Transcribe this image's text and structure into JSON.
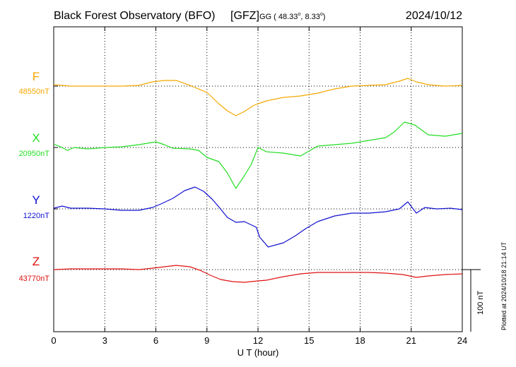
{
  "header": {
    "title": "Black Forest Observatory (BFO)",
    "agency": "[GFZ]",
    "coords_prefix": "GG ( 48.33",
    "coords_mid": ",   8.33",
    "coords_suffix": ")",
    "date": "2024/10/12"
  },
  "footer": {
    "plotted_note": "Plotted at 2024/10/18 21:14 UT"
  },
  "chart_data": {
    "type": "line",
    "xlabel": "U T (hour)",
    "xlim": [
      0,
      24
    ],
    "xticks": [
      0,
      3,
      6,
      9,
      12,
      15,
      18,
      21,
      24
    ],
    "xtick_labels": [
      "0",
      "3",
      "6",
      "9",
      "12",
      "15",
      "18",
      "21",
      "24"
    ],
    "grid": true,
    "grid_style": "dotted",
    "scale_bar": {
      "label": "100 nT",
      "value_nT": 100
    },
    "series": [
      {
        "name": "F",
        "baseline_label": "48550nT",
        "baseline_nT": 48550,
        "color": "#f5a800",
        "x": [
          0,
          0.5,
          1,
          2,
          3,
          4,
          5,
          5.8,
          6.5,
          7.2,
          8,
          9,
          9.7,
          10.2,
          10.7,
          11.2,
          11.7,
          12,
          12.5,
          13.5,
          14.5,
          15.5,
          16.5,
          17.5,
          18.5,
          19.5,
          20.3,
          20.8,
          21.3,
          22,
          23,
          24
        ],
        "y": [
          2,
          1,
          0,
          0,
          0,
          0,
          1,
          6,
          8,
          8,
          1,
          -9,
          -25,
          -35,
          -42,
          -36,
          -28,
          -25,
          -21,
          -16,
          -14,
          -10,
          -4,
          0,
          1,
          2,
          7,
          11,
          6,
          2,
          0,
          1
        ]
      },
      {
        "name": "X",
        "baseline_label": "20950nT",
        "baseline_nT": 20950,
        "color": "#22dd22",
        "x": [
          0,
          0.4,
          0.8,
          1.2,
          2,
          3,
          4,
          5,
          6,
          6.5,
          7,
          8,
          8.5,
          9,
          9.7,
          10.2,
          10.7,
          11.2,
          11.6,
          12,
          12.5,
          13.5,
          14.5,
          15.5,
          16.5,
          17.5,
          18.5,
          19.5,
          20,
          20.6,
          21.2,
          22,
          23,
          24
        ],
        "y": [
          5,
          1,
          -4,
          0,
          -2,
          0,
          1,
          4,
          8,
          4,
          -1,
          -2,
          -4,
          -14,
          -20,
          -36,
          -58,
          -40,
          -24,
          0,
          -6,
          -8,
          -12,
          2,
          4,
          6,
          10,
          14,
          22,
          36,
          32,
          18,
          16,
          20
        ]
      },
      {
        "name": "Y",
        "baseline_label": "1220nT",
        "baseline_nT": 1220,
        "color": "#1010d0",
        "x": [
          0,
          0.5,
          1,
          2,
          3,
          4,
          5,
          5.8,
          6.3,
          7,
          7.7,
          8.3,
          8.8,
          9.3,
          9.8,
          10.2,
          10.7,
          11.2,
          11.9,
          12.1,
          12.6,
          13.5,
          14.2,
          14.8,
          15.5,
          16.5,
          17.5,
          18.5,
          19.5,
          20.3,
          20.8,
          21.3,
          21.8,
          22.5,
          23.3,
          24
        ],
        "y": [
          1,
          4,
          1,
          1,
          0,
          -2,
          -2,
          2,
          7,
          15,
          26,
          31,
          25,
          14,
          0,
          -12,
          -19,
          -18,
          -26,
          -40,
          -54,
          -48,
          -38,
          -28,
          -18,
          -10,
          -6,
          -6,
          -4,
          0,
          10,
          -6,
          2,
          0,
          1,
          -1
        ]
      },
      {
        "name": "Z",
        "baseline_label": "43770nT",
        "baseline_nT": 43770,
        "color": "#e01010",
        "x": [
          0,
          1,
          2,
          3,
          4,
          5,
          5.8,
          6.5,
          7.2,
          8,
          8.6,
          9.2,
          9.8,
          10.5,
          11.2,
          12,
          12.5,
          13.5,
          14.5,
          15.5,
          16.5,
          17.5,
          18.5,
          19.5,
          20.5,
          21.3,
          22,
          23,
          24
        ],
        "y": [
          0,
          1,
          1,
          1,
          1,
          0,
          2,
          4,
          6,
          4,
          -1,
          -8,
          -14,
          -17,
          -18,
          -16,
          -15,
          -10,
          -6,
          -4,
          -4,
          -4,
          -4,
          -5,
          -7,
          -11,
          -9,
          -7,
          -6
        ]
      }
    ]
  }
}
